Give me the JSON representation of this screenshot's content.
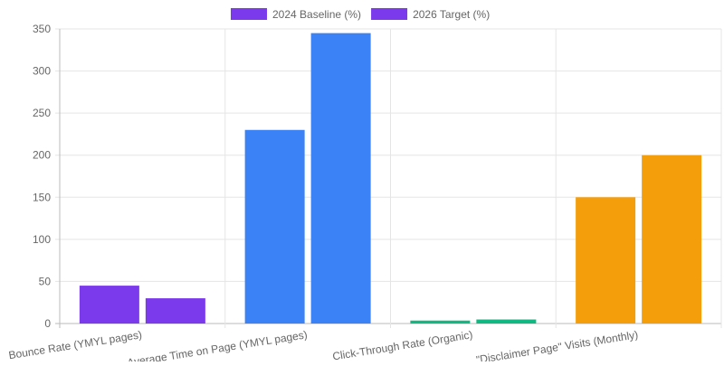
{
  "chart_data": {
    "type": "bar",
    "categories": [
      "Bounce Rate (YMYL pages)",
      "Average Time on Page (YMYL pages)",
      "Click-Through Rate (Organic)",
      "\"Disclaimer Page\" Visits (Monthly)"
    ],
    "series": [
      {
        "name": "2024 Baseline (%)",
        "values": [
          45,
          230,
          3.5,
          150
        ]
      },
      {
        "name": "2026 Target (%)",
        "values": [
          30,
          345,
          4.8,
          200
        ]
      }
    ],
    "bar_colors": [
      "#7c3aed",
      "#3b82f6",
      "#10b981",
      "#f59e0b"
    ],
    "legend_color": "#7c3aed",
    "ylim": [
      0,
      350
    ],
    "yticks": [
      0,
      50,
      100,
      150,
      200,
      250,
      300,
      350
    ],
    "grid": true,
    "legend_position": "top"
  }
}
